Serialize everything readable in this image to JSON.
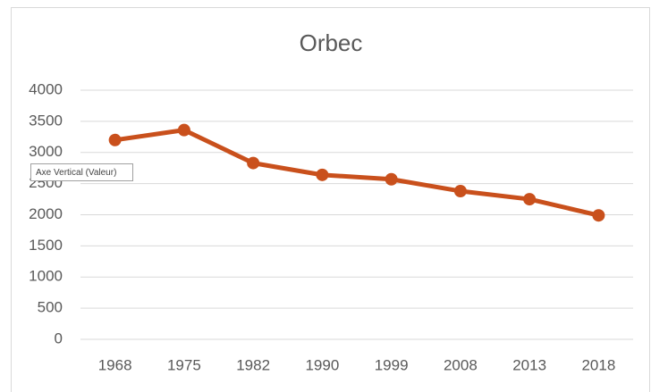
{
  "chart_data": {
    "type": "line",
    "title": "Orbec",
    "categories": [
      "1968",
      "1975",
      "1982",
      "1990",
      "1999",
      "2008",
      "2013",
      "2018"
    ],
    "series": [
      {
        "name": "Orbec",
        "color": "#c9501c",
        "values": [
          3200,
          3360,
          2830,
          2640,
          2570,
          2380,
          2250,
          1990
        ]
      }
    ],
    "ylim": [
      0,
      4000
    ],
    "yticks": [
      0,
      500,
      1000,
      1500,
      2000,
      2500,
      3000,
      3500,
      4000
    ],
    "grid": true,
    "annotations": [
      "Axe Vertical (Valeur)"
    ]
  }
}
